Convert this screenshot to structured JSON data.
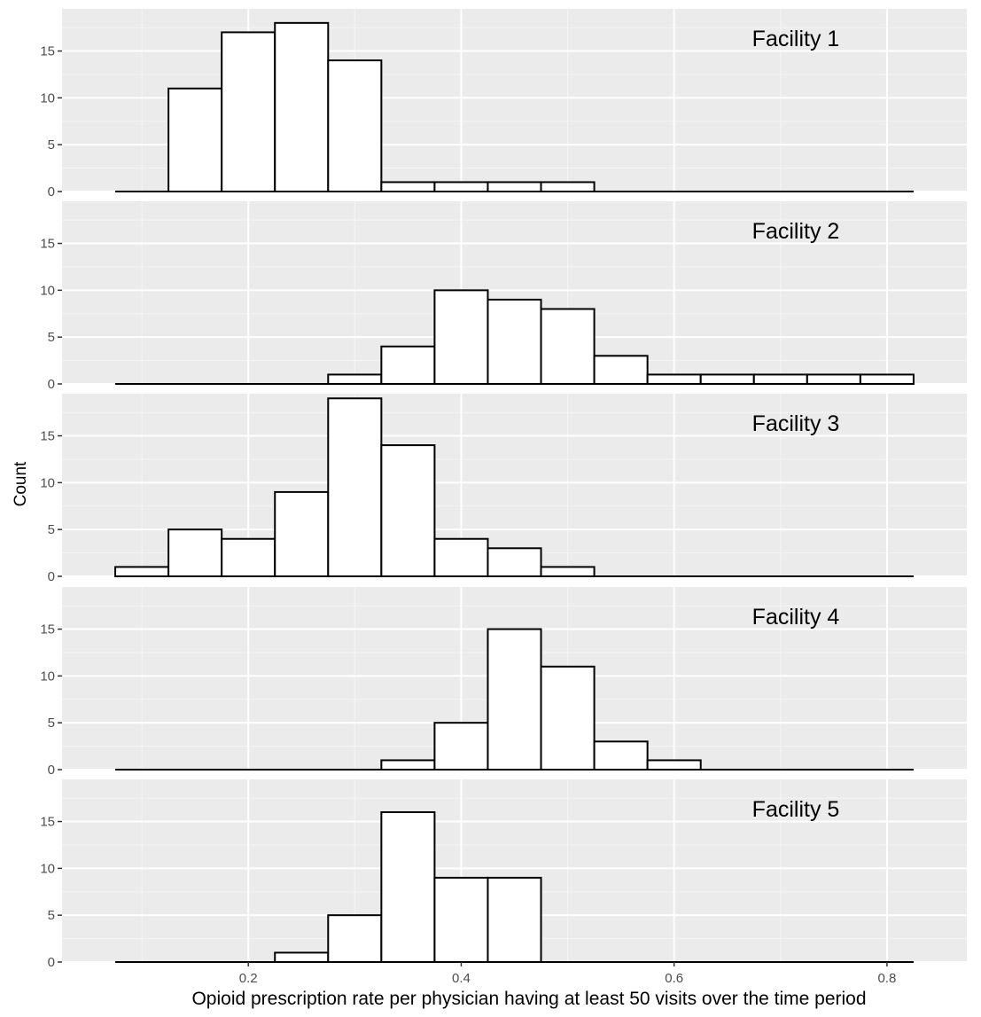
{
  "chart_data": {
    "type": "bar",
    "xlabel": "Opioid prescription rate per physician having at least 50 visits over the time period",
    "ylabel": "Count",
    "bin_width": 0.05,
    "bin_centers": [
      0.1,
      0.15,
      0.2,
      0.25,
      0.3,
      0.35,
      0.4,
      0.45,
      0.5,
      0.55,
      0.6,
      0.65,
      0.7,
      0.75,
      0.8
    ],
    "xlim": [
      0.025,
      0.875
    ],
    "ylim": [
      0,
      19.5
    ],
    "x_ticks": [
      0.2,
      0.4,
      0.6,
      0.8
    ],
    "x_tick_labels": [
      "0.2",
      "0.4",
      "0.6",
      "0.8"
    ],
    "y_ticks": [
      0,
      5,
      10,
      15
    ],
    "y_tick_labels": [
      "0",
      "5",
      "10",
      "15"
    ],
    "grid": true,
    "panels": [
      {
        "label": "Facility 1",
        "values": [
          0,
          11,
          17,
          18,
          14,
          1,
          1,
          1,
          1,
          0,
          0,
          0,
          0,
          0,
          0
        ]
      },
      {
        "label": "Facility 2",
        "values": [
          0,
          0,
          0,
          0,
          1,
          4,
          10,
          9,
          8,
          3,
          1,
          1,
          1,
          1,
          1
        ]
      },
      {
        "label": "Facility 3",
        "values": [
          1,
          5,
          4,
          9,
          19,
          14,
          4,
          3,
          1,
          0,
          0,
          0,
          0,
          0,
          0
        ]
      },
      {
        "label": "Facility 4",
        "values": [
          0,
          0,
          0,
          0,
          0,
          1,
          5,
          15,
          11,
          3,
          1,
          0,
          0,
          0,
          0
        ]
      },
      {
        "label": "Facility 5",
        "values": [
          0,
          0,
          0,
          1,
          5,
          16,
          9,
          9,
          0,
          0,
          0,
          0,
          0,
          0,
          0
        ]
      }
    ]
  }
}
